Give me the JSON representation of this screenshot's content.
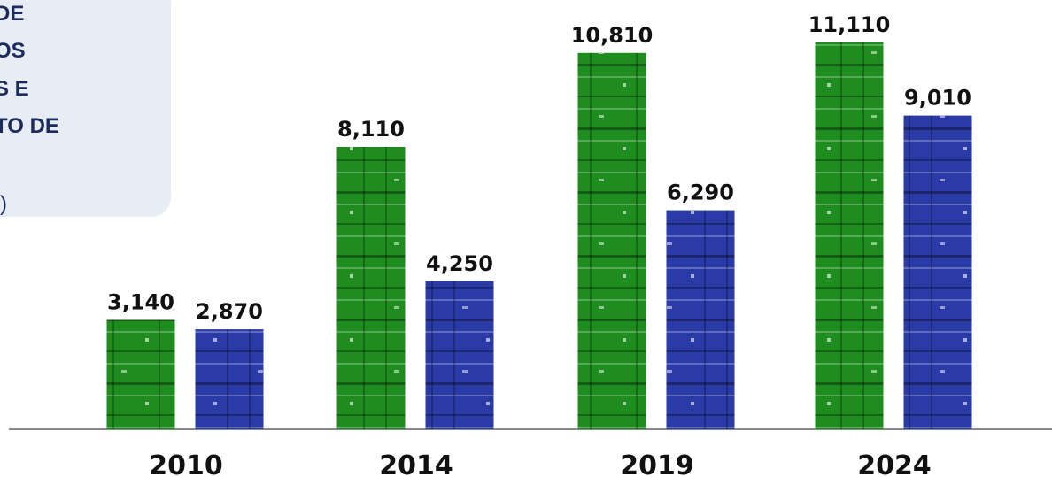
{
  "chart_data": {
    "type": "bar",
    "title_lines": [
      "DE",
      "OS",
      "S E",
      "TO DE",
      ")"
    ],
    "categories": [
      "2010",
      "2014",
      "2019",
      "2024"
    ],
    "series": [
      {
        "color": "#1e8c1e",
        "values": [
          3140,
          8110,
          10810,
          11110
        ],
        "value_labels": [
          "3,140",
          "8,110",
          "10,810",
          "11,110"
        ]
      },
      {
        "color": "#2a3aa6",
        "values": [
          2870,
          4250,
          6290,
          9010
        ],
        "value_labels": [
          "2,870",
          "4,250",
          "6,290",
          "9,010"
        ]
      }
    ]
  }
}
